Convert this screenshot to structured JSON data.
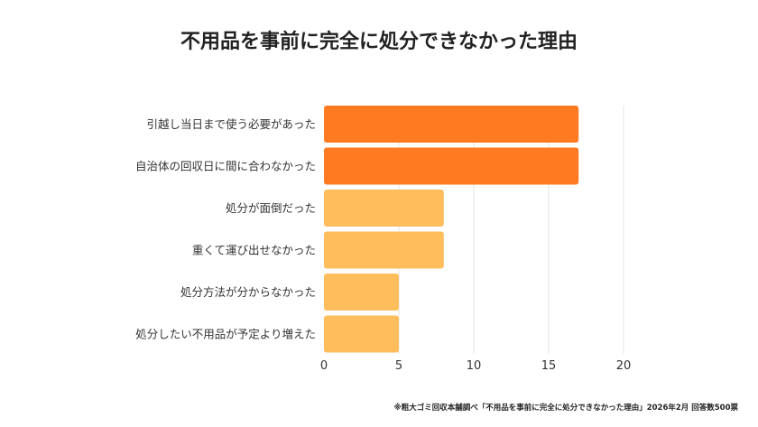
{
  "chart_data": {
    "type": "bar",
    "orientation": "horizontal",
    "title": "不用品を事前に完全に処分できなかった理由",
    "categories": [
      "引越し当日まで使う必要があった",
      "自治体の回収日に間に合わなかった",
      "処分が面倒だった",
      "重くて運び出せなかった",
      "処分方法が分からなかった",
      "処分したい不用品が予定より増えた"
    ],
    "values": [
      17,
      17,
      8,
      8,
      5,
      5
    ],
    "bar_colors": [
      "#FF7A21",
      "#FF7A21",
      "#FFBD5C",
      "#FFBD5C",
      "#FFBD5C",
      "#FFBD5C"
    ],
    "xlim": [
      0,
      20
    ],
    "xticks": [
      "0",
      "5",
      "10",
      "15",
      "20"
    ],
    "grid": "vertical",
    "xlabel": "",
    "ylabel": ""
  },
  "footer": "※粗大ゴミ回収本舗調べ「不用品を事前に完全に処分できなかった理由」2026年2月 回答数500票"
}
